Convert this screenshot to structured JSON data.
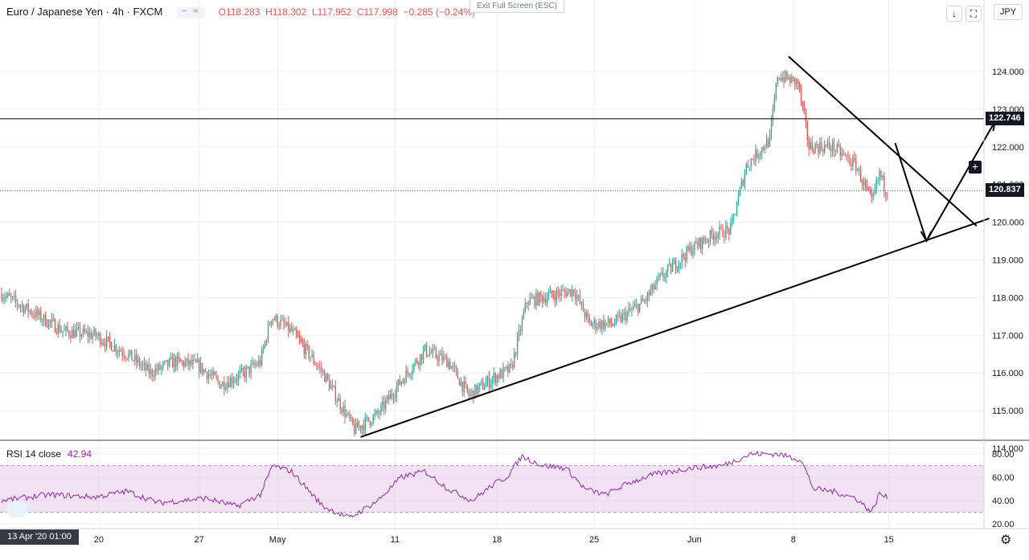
{
  "header": {
    "symbol": "Euro / Japanese Yen · 4h · FXCM",
    "open": "O118.283",
    "high": "H118.302",
    "low": "L117.952",
    "close": "C117.998",
    "change": "−0.285 (−0.24%)",
    "pill_a": "−",
    "pill_b": "≈"
  },
  "toolbar": {
    "exit_fullscreen": "Exit Full Screen (ESC)",
    "download_icon_glyph": "↓",
    "fullscreen_icon_glyph": "⛶",
    "currency": "JPY"
  },
  "rsi_header": {
    "label": "RSI 14 close",
    "value": "42.94"
  },
  "date_badge": "13 Apr '20  01:00",
  "settings_glyph": "⚙",
  "colors": {
    "up": "#26a69a",
    "down": "#ef5350",
    "rsi_line": "#9c27b0",
    "rsi_band": "#e1bee7",
    "grid": "#eef0f4",
    "axis_text": "#131722",
    "dotted_line": "#2962ff"
  },
  "chart_data": [
    {
      "type": "candlestick",
      "title": "",
      "price_axis": {
        "ticks": [
          114.0,
          115.0,
          116.0,
          117.0,
          118.0,
          119.0,
          120.0,
          121.0,
          122.0,
          123.0,
          124.0
        ],
        "ylim": [
          113.5,
          124.5
        ]
      },
      "time_axis": {
        "ticks": [
          "20",
          "27",
          "May",
          "11",
          "18",
          "25",
          "Jun",
          "8",
          "15"
        ]
      },
      "horizontal_line": {
        "value": 122.746,
        "label": "122.746"
      },
      "current_price": {
        "value": 120.837,
        "label": "120.837"
      },
      "anchors": [
        {
          "t": 0,
          "p": 118.1
        },
        {
          "t": 20,
          "p": 117.6
        },
        {
          "t": 40,
          "p": 117.1
        },
        {
          "t": 60,
          "p": 117.0
        },
        {
          "t": 80,
          "p": 116.5
        },
        {
          "t": 95,
          "p": 116.0
        },
        {
          "t": 110,
          "p": 116.3
        },
        {
          "t": 125,
          "p": 116.2
        },
        {
          "t": 140,
          "p": 115.7
        },
        {
          "t": 155,
          "p": 116.0
        },
        {
          "t": 165,
          "p": 116.3
        },
        {
          "t": 172,
          "p": 117.5
        },
        {
          "t": 185,
          "p": 117.1
        },
        {
          "t": 205,
          "p": 116.0
        },
        {
          "t": 225,
          "p": 114.5
        },
        {
          "t": 240,
          "p": 114.9
        },
        {
          "t": 255,
          "p": 115.8
        },
        {
          "t": 270,
          "p": 116.6
        },
        {
          "t": 285,
          "p": 116.3
        },
        {
          "t": 298,
          "p": 115.4
        },
        {
          "t": 315,
          "p": 115.9
        },
        {
          "t": 325,
          "p": 116.1
        },
        {
          "t": 335,
          "p": 117.9
        },
        {
          "t": 355,
          "p": 118.1
        },
        {
          "t": 365,
          "p": 118.2
        },
        {
          "t": 375,
          "p": 117.3
        },
        {
          "t": 390,
          "p": 117.3
        },
        {
          "t": 410,
          "p": 117.9
        },
        {
          "t": 420,
          "p": 118.5
        },
        {
          "t": 440,
          "p": 119.3
        },
        {
          "t": 455,
          "p": 119.7
        },
        {
          "t": 465,
          "p": 119.8
        },
        {
          "t": 475,
          "p": 121.5
        },
        {
          "t": 490,
          "p": 122.2
        },
        {
          "t": 495,
          "p": 123.9
        },
        {
          "t": 508,
          "p": 123.7
        },
        {
          "t": 515,
          "p": 122.0
        },
        {
          "t": 530,
          "p": 122.0
        },
        {
          "t": 545,
          "p": 121.5
        },
        {
          "t": 555,
          "p": 120.5
        },
        {
          "t": 560,
          "p": 121.3
        },
        {
          "t": 564,
          "p": 120.84
        }
      ],
      "drawings": [
        {
          "name": "support-trendline",
          "from": {
            "t": 229,
            "p": 114.3
          },
          "to": {
            "t": 630,
            "p": 120.1
          }
        },
        {
          "name": "resistance-trendline",
          "from": {
            "t": 502,
            "p": 124.4
          },
          "to": {
            "t": 622,
            "p": 119.9
          }
        },
        {
          "name": "projection-down",
          "from": {
            "t": 570,
            "p": 122.1
          },
          "to": {
            "t": 590,
            "p": 119.5
          }
        },
        {
          "name": "projection-up",
          "from": {
            "t": 590,
            "p": 119.5
          },
          "to": {
            "t": 634,
            "p": 122.7
          }
        }
      ]
    },
    {
      "type": "line",
      "title": "RSI 14 close",
      "ylim": [
        20,
        85
      ],
      "ticks": [
        20.0,
        40.0,
        60.0,
        80.0
      ],
      "bands": [
        30,
        70
      ],
      "last_value": 42.94,
      "anchors": [
        {
          "t": 0,
          "p": 40
        },
        {
          "t": 30,
          "p": 45
        },
        {
          "t": 60,
          "p": 43
        },
        {
          "t": 80,
          "p": 48
        },
        {
          "t": 100,
          "p": 38
        },
        {
          "t": 130,
          "p": 42
        },
        {
          "t": 150,
          "p": 35
        },
        {
          "t": 165,
          "p": 45
        },
        {
          "t": 173,
          "p": 70
        },
        {
          "t": 185,
          "p": 65
        },
        {
          "t": 205,
          "p": 35
        },
        {
          "t": 222,
          "p": 25
        },
        {
          "t": 240,
          "p": 40
        },
        {
          "t": 255,
          "p": 60
        },
        {
          "t": 270,
          "p": 65
        },
        {
          "t": 285,
          "p": 50
        },
        {
          "t": 300,
          "p": 40
        },
        {
          "t": 315,
          "p": 55
        },
        {
          "t": 322,
          "p": 60
        },
        {
          "t": 332,
          "p": 78
        },
        {
          "t": 345,
          "p": 70
        },
        {
          "t": 360,
          "p": 68
        },
        {
          "t": 372,
          "p": 50
        },
        {
          "t": 385,
          "p": 45
        },
        {
          "t": 400,
          "p": 55
        },
        {
          "t": 415,
          "p": 62
        },
        {
          "t": 440,
          "p": 68
        },
        {
          "t": 460,
          "p": 70
        },
        {
          "t": 478,
          "p": 80
        },
        {
          "t": 495,
          "p": 80
        },
        {
          "t": 510,
          "p": 75
        },
        {
          "t": 518,
          "p": 50
        },
        {
          "t": 530,
          "p": 48
        },
        {
          "t": 545,
          "p": 42
        },
        {
          "t": 555,
          "p": 30
        },
        {
          "t": 560,
          "p": 46
        },
        {
          "t": 564,
          "p": 42.94
        }
      ]
    }
  ]
}
